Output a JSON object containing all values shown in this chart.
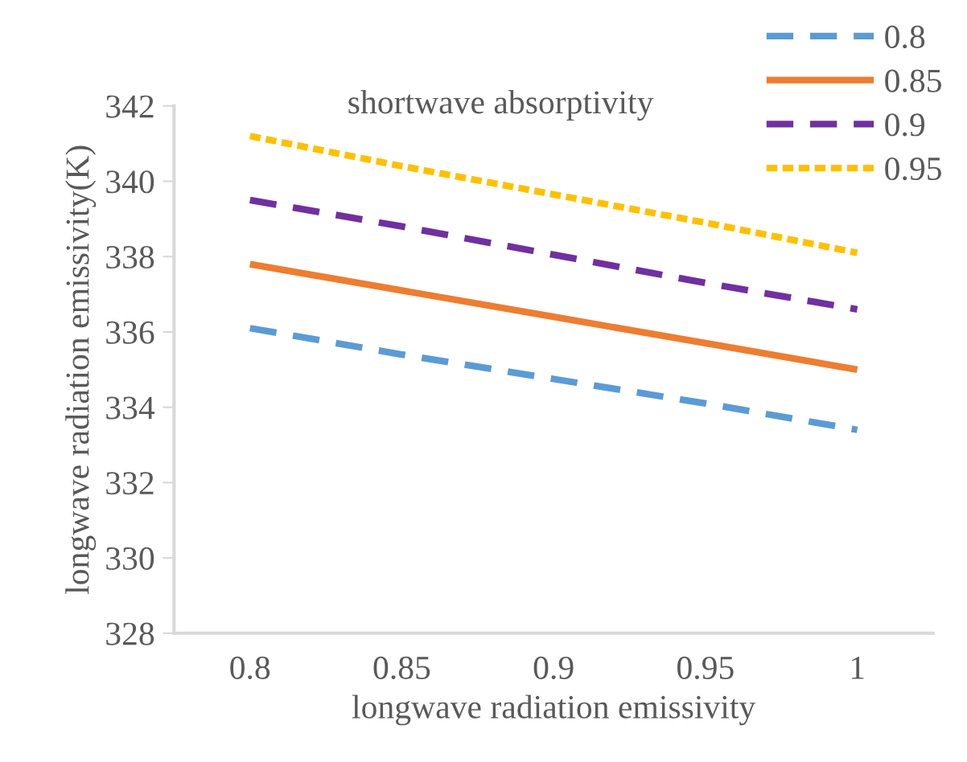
{
  "chart_data": {
    "type": "line",
    "xlabel": "longwave radiation emissivity",
    "ylabel": "longwave radiation emissivity(K)",
    "legend_title": "shortwave absorptivity",
    "categories": [
      "0.8",
      "0.85",
      "0.9",
      "0.95",
      "1"
    ],
    "series": [
      {
        "name": "0.8",
        "color": "#5b9bd5",
        "line_style": "dashed",
        "values": [
          336.1,
          335.4,
          334.75,
          334.1,
          333.4
        ]
      },
      {
        "name": "0.85",
        "color": "#ed7d31",
        "line_style": "solid",
        "values": [
          337.8,
          337.1,
          336.4,
          335.7,
          335.0
        ]
      },
      {
        "name": "0.9",
        "color": "#7030a0",
        "line_style": "dashed",
        "values": [
          339.5,
          338.8,
          338.05,
          337.3,
          336.6
        ]
      },
      {
        "name": "0.95",
        "color": "#ffc000",
        "line_style": "dotted",
        "values": [
          341.2,
          340.4,
          339.65,
          338.9,
          338.1
        ]
      }
    ],
    "ylim": [
      328,
      342
    ],
    "yticks": [
      328,
      330,
      332,
      334,
      336,
      338,
      340,
      342
    ],
    "grid": false,
    "legend": "top right",
    "marker": "none"
  }
}
